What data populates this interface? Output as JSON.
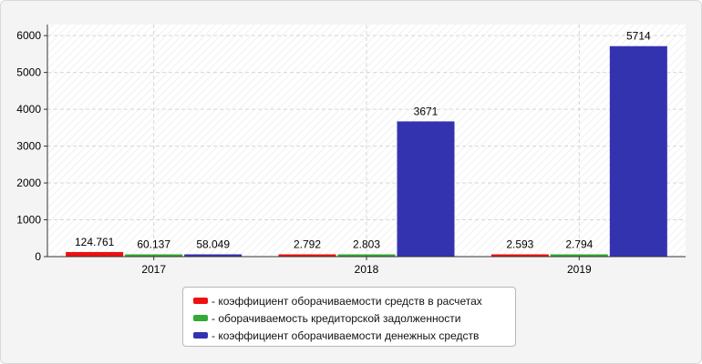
{
  "chart_data": {
    "type": "bar",
    "categories": [
      "2017",
      "2018",
      "2019"
    ],
    "series": [
      {
        "name": "- коэффициент оборачиваемости средств в расчетах",
        "color": "#ee1111",
        "values": [
          124.761,
          2.792,
          2.593
        ],
        "labels": [
          "124.761",
          "2.792",
          "2.593"
        ]
      },
      {
        "name": "- оборачиваемость кредиторской задолженности",
        "color": "#33aa33",
        "values": [
          60.137,
          2.803,
          2.794
        ],
        "labels": [
          "60.137",
          "2.803",
          "2.794"
        ]
      },
      {
        "name": "- коэффициент оборачиваемости денежных средств",
        "color": "#3333b0",
        "values": [
          58.049,
          3671,
          5714
        ],
        "labels": [
          "58.049",
          "3671",
          "5714"
        ]
      }
    ],
    "ylim": [
      0,
      6300
    ],
    "yticks": [
      0,
      1000,
      2000,
      3000,
      4000,
      5000,
      6000
    ],
    "grid": true,
    "legend": "bottom"
  }
}
